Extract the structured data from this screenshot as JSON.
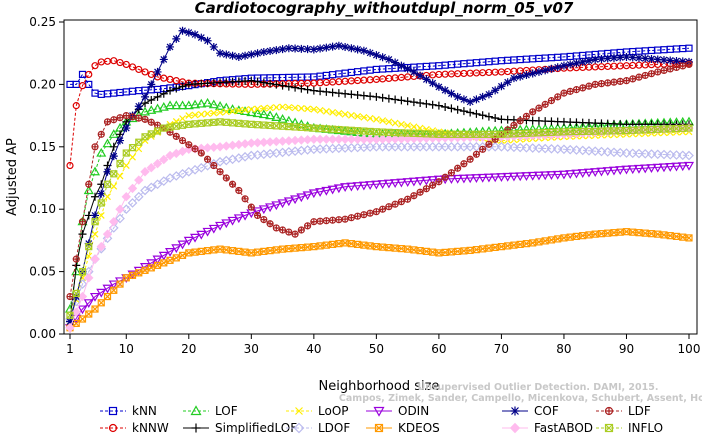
{
  "chart_data": {
    "type": "line",
    "title": "Cardiotocography_withoutdupl_norm_05_v07",
    "xlabel": "Neighborhood size",
    "ylabel": "Adjusted AP",
    "xlim": [
      1,
      100
    ],
    "ylim": [
      0.0,
      0.25
    ],
    "xticks": [
      1,
      10,
      20,
      30,
      40,
      50,
      60,
      70,
      80,
      90,
      100
    ],
    "yticks": [
      "0.00",
      "0.05",
      "0.10",
      "0.15",
      "0.20",
      "0.25"
    ],
    "grid": false,
    "legend_position": "bottom",
    "watermark": [
      "Campos, Zimek, Sander, Campello, Micenkova, Schubert, Assent, Houle",
      "Unsupervised Outlier Detection. DAMI, 2015."
    ],
    "series": [
      {
        "name": "kNN",
        "color": "#0000cc",
        "marker": "square",
        "dashed": true,
        "points": [
          [
            1,
            0.2
          ],
          [
            2,
            0.2
          ],
          [
            3,
            0.208
          ],
          [
            4,
            0.2
          ],
          [
            5,
            0.193
          ],
          [
            6,
            0.192
          ],
          [
            8,
            0.193
          ],
          [
            10,
            0.194
          ],
          [
            12,
            0.195
          ],
          [
            15,
            0.196
          ],
          [
            20,
            0.199
          ],
          [
            25,
            0.203
          ],
          [
            30,
            0.205
          ],
          [
            40,
            0.206
          ],
          [
            50,
            0.212
          ],
          [
            60,
            0.215
          ],
          [
            70,
            0.219
          ],
          [
            80,
            0.222
          ],
          [
            90,
            0.226
          ],
          [
            100,
            0.229
          ]
        ]
      },
      {
        "name": "kNNW",
        "color": "#dd0000",
        "marker": "circle",
        "dashed": true,
        "points": [
          [
            1,
            0.135
          ],
          [
            2,
            0.183
          ],
          [
            3,
            0.199
          ],
          [
            4,
            0.208
          ],
          [
            5,
            0.215
          ],
          [
            6,
            0.218
          ],
          [
            8,
            0.219
          ],
          [
            10,
            0.216
          ],
          [
            12,
            0.212
          ],
          [
            15,
            0.206
          ],
          [
            20,
            0.201
          ],
          [
            30,
            0.2
          ],
          [
            40,
            0.201
          ],
          [
            50,
            0.204
          ],
          [
            60,
            0.208
          ],
          [
            70,
            0.21
          ],
          [
            80,
            0.213
          ],
          [
            90,
            0.215
          ],
          [
            100,
            0.217
          ]
        ]
      },
      {
        "name": "LOF",
        "color": "#22cc22",
        "marker": "triangle",
        "dashed": true,
        "points": [
          [
            1,
            0.02
          ],
          [
            2,
            0.05
          ],
          [
            3,
            0.09
          ],
          [
            4,
            0.115
          ],
          [
            5,
            0.13
          ],
          [
            6,
            0.145
          ],
          [
            8,
            0.16
          ],
          [
            10,
            0.17
          ],
          [
            13,
            0.178
          ],
          [
            17,
            0.183
          ],
          [
            20,
            0.183
          ],
          [
            23,
            0.185
          ],
          [
            27,
            0.18
          ],
          [
            33,
            0.175
          ],
          [
            40,
            0.165
          ],
          [
            50,
            0.16
          ],
          [
            60,
            0.16
          ],
          [
            70,
            0.163
          ],
          [
            80,
            0.165
          ],
          [
            90,
            0.168
          ],
          [
            100,
            0.17
          ]
        ]
      },
      {
        "name": "SimplifiedLOF",
        "color": "#000000",
        "marker": "plus",
        "dashed": false,
        "points": [
          [
            1,
            0.01
          ],
          [
            2,
            0.055
          ],
          [
            3,
            0.08
          ],
          [
            4,
            0.095
          ],
          [
            5,
            0.11
          ],
          [
            6,
            0.12
          ],
          [
            8,
            0.15
          ],
          [
            10,
            0.17
          ],
          [
            13,
            0.185
          ],
          [
            17,
            0.195
          ],
          [
            20,
            0.2
          ],
          [
            30,
            0.203
          ],
          [
            40,
            0.195
          ],
          [
            50,
            0.19
          ],
          [
            60,
            0.183
          ],
          [
            70,
            0.172
          ],
          [
            80,
            0.17
          ],
          [
            90,
            0.168
          ],
          [
            100,
            0.168
          ]
        ]
      },
      {
        "name": "LoOP",
        "color": "#ffee00",
        "marker": "cross",
        "dashed": true,
        "points": [
          [
            1,
            0.01
          ],
          [
            3,
            0.045
          ],
          [
            5,
            0.08
          ],
          [
            7,
            0.11
          ],
          [
            10,
            0.135
          ],
          [
            13,
            0.155
          ],
          [
            17,
            0.168
          ],
          [
            20,
            0.175
          ],
          [
            30,
            0.18
          ],
          [
            35,
            0.182
          ],
          [
            40,
            0.18
          ],
          [
            50,
            0.172
          ],
          [
            60,
            0.162
          ],
          [
            70,
            0.155
          ],
          [
            80,
            0.158
          ],
          [
            90,
            0.16
          ],
          [
            100,
            0.162
          ]
        ]
      },
      {
        "name": "LDOF",
        "color": "#bbbbee",
        "marker": "diamond",
        "dashed": true,
        "points": [
          [
            1,
            0.012
          ],
          [
            3,
            0.04
          ],
          [
            5,
            0.06
          ],
          [
            8,
            0.085
          ],
          [
            10,
            0.1
          ],
          [
            13,
            0.115
          ],
          [
            17,
            0.125
          ],
          [
            20,
            0.13
          ],
          [
            25,
            0.138
          ],
          [
            30,
            0.143
          ],
          [
            40,
            0.148
          ],
          [
            50,
            0.15
          ],
          [
            60,
            0.15
          ],
          [
            70,
            0.15
          ],
          [
            80,
            0.148
          ],
          [
            90,
            0.145
          ],
          [
            100,
            0.143
          ]
        ]
      },
      {
        "name": "ODIN",
        "color": "#9900dd",
        "marker": "triangle-down",
        "dashed": false,
        "points": [
          [
            1,
            0.005
          ],
          [
            3,
            0.02
          ],
          [
            5,
            0.03
          ],
          [
            8,
            0.04
          ],
          [
            10,
            0.045
          ],
          [
            15,
            0.06
          ],
          [
            20,
            0.075
          ],
          [
            25,
            0.087
          ],
          [
            30,
            0.097
          ],
          [
            35,
            0.105
          ],
          [
            40,
            0.113
          ],
          [
            45,
            0.118
          ],
          [
            50,
            0.12
          ],
          [
            60,
            0.124
          ],
          [
            70,
            0.126
          ],
          [
            80,
            0.128
          ],
          [
            90,
            0.132
          ],
          [
            100,
            0.135
          ]
        ]
      },
      {
        "name": "KDEOS",
        "color": "#ff9900",
        "marker": "boxed-x",
        "dashed": false,
        "points": [
          [
            1,
            0.005
          ],
          [
            3,
            0.012
          ],
          [
            5,
            0.02
          ],
          [
            8,
            0.035
          ],
          [
            10,
            0.045
          ],
          [
            15,
            0.055
          ],
          [
            20,
            0.065
          ],
          [
            25,
            0.068
          ],
          [
            30,
            0.065
          ],
          [
            35,
            0.068
          ],
          [
            40,
            0.07
          ],
          [
            45,
            0.073
          ],
          [
            50,
            0.07
          ],
          [
            55,
            0.068
          ],
          [
            60,
            0.065
          ],
          [
            65,
            0.067
          ],
          [
            70,
            0.07
          ],
          [
            75,
            0.073
          ],
          [
            80,
            0.077
          ],
          [
            85,
            0.08
          ],
          [
            90,
            0.082
          ],
          [
            95,
            0.08
          ],
          [
            100,
            0.077
          ]
        ]
      },
      {
        "name": "COF",
        "color": "#000088",
        "marker": "asterisk",
        "dashed": false,
        "points": [
          [
            1,
            0.01
          ],
          [
            3,
            0.05
          ],
          [
            5,
            0.095
          ],
          [
            7,
            0.13
          ],
          [
            9,
            0.155
          ],
          [
            11,
            0.175
          ],
          [
            13,
            0.19
          ],
          [
            15,
            0.21
          ],
          [
            17,
            0.23
          ],
          [
            19,
            0.243
          ],
          [
            21,
            0.24
          ],
          [
            23,
            0.235
          ],
          [
            25,
            0.225
          ],
          [
            28,
            0.222
          ],
          [
            32,
            0.226
          ],
          [
            36,
            0.229
          ],
          [
            40,
            0.228
          ],
          [
            44,
            0.231
          ],
          [
            48,
            0.227
          ],
          [
            52,
            0.22
          ],
          [
            56,
            0.21
          ],
          [
            60,
            0.198
          ],
          [
            63,
            0.19
          ],
          [
            65,
            0.186
          ],
          [
            68,
            0.192
          ],
          [
            72,
            0.205
          ],
          [
            76,
            0.21
          ],
          [
            80,
            0.215
          ],
          [
            85,
            0.22
          ],
          [
            90,
            0.222
          ],
          [
            95,
            0.22
          ],
          [
            100,
            0.218
          ]
        ]
      },
      {
        "name": "FastABOD",
        "color": "#ffbbee",
        "marker": "diamond-filled",
        "dashed": false,
        "points": [
          [
            1,
            0.005
          ],
          [
            3,
            0.03
          ],
          [
            5,
            0.06
          ],
          [
            8,
            0.09
          ],
          [
            10,
            0.11
          ],
          [
            13,
            0.13
          ],
          [
            17,
            0.143
          ],
          [
            20,
            0.148
          ],
          [
            25,
            0.15
          ],
          [
            30,
            0.153
          ],
          [
            40,
            0.156
          ],
          [
            50,
            0.156
          ],
          [
            60,
            0.157
          ],
          [
            70,
            0.158
          ],
          [
            80,
            0.16
          ],
          [
            90,
            0.163
          ],
          [
            100,
            0.165
          ]
        ]
      },
      {
        "name": "LDF",
        "color": "#aa2222",
        "marker": "circle-plus",
        "dashed": true,
        "points": [
          [
            1,
            0.03
          ],
          [
            3,
            0.09
          ],
          [
            5,
            0.15
          ],
          [
            7,
            0.17
          ],
          [
            10,
            0.175
          ],
          [
            13,
            0.172
          ],
          [
            16,
            0.165
          ],
          [
            19,
            0.155
          ],
          [
            22,
            0.145
          ],
          [
            25,
            0.13
          ],
          [
            28,
            0.115
          ],
          [
            31,
            0.095
          ],
          [
            34,
            0.085
          ],
          [
            37,
            0.08
          ],
          [
            40,
            0.09
          ],
          [
            45,
            0.092
          ],
          [
            50,
            0.098
          ],
          [
            55,
            0.108
          ],
          [
            60,
            0.122
          ],
          [
            65,
            0.14
          ],
          [
            70,
            0.16
          ],
          [
            75,
            0.178
          ],
          [
            80,
            0.193
          ],
          [
            85,
            0.2
          ],
          [
            90,
            0.203
          ],
          [
            95,
            0.21
          ],
          [
            100,
            0.216
          ]
        ]
      },
      {
        "name": "INFLO",
        "color": "#aacc22",
        "marker": "boxed-x",
        "dashed": true,
        "points": [
          [
            1,
            0.015
          ],
          [
            3,
            0.05
          ],
          [
            5,
            0.09
          ],
          [
            7,
            0.12
          ],
          [
            10,
            0.145
          ],
          [
            13,
            0.158
          ],
          [
            16,
            0.165
          ],
          [
            20,
            0.168
          ],
          [
            25,
            0.17
          ],
          [
            30,
            0.168
          ],
          [
            40,
            0.165
          ],
          [
            50,
            0.162
          ],
          [
            60,
            0.16
          ],
          [
            70,
            0.16
          ],
          [
            80,
            0.162
          ],
          [
            90,
            0.163
          ],
          [
            100,
            0.165
          ]
        ]
      }
    ]
  }
}
